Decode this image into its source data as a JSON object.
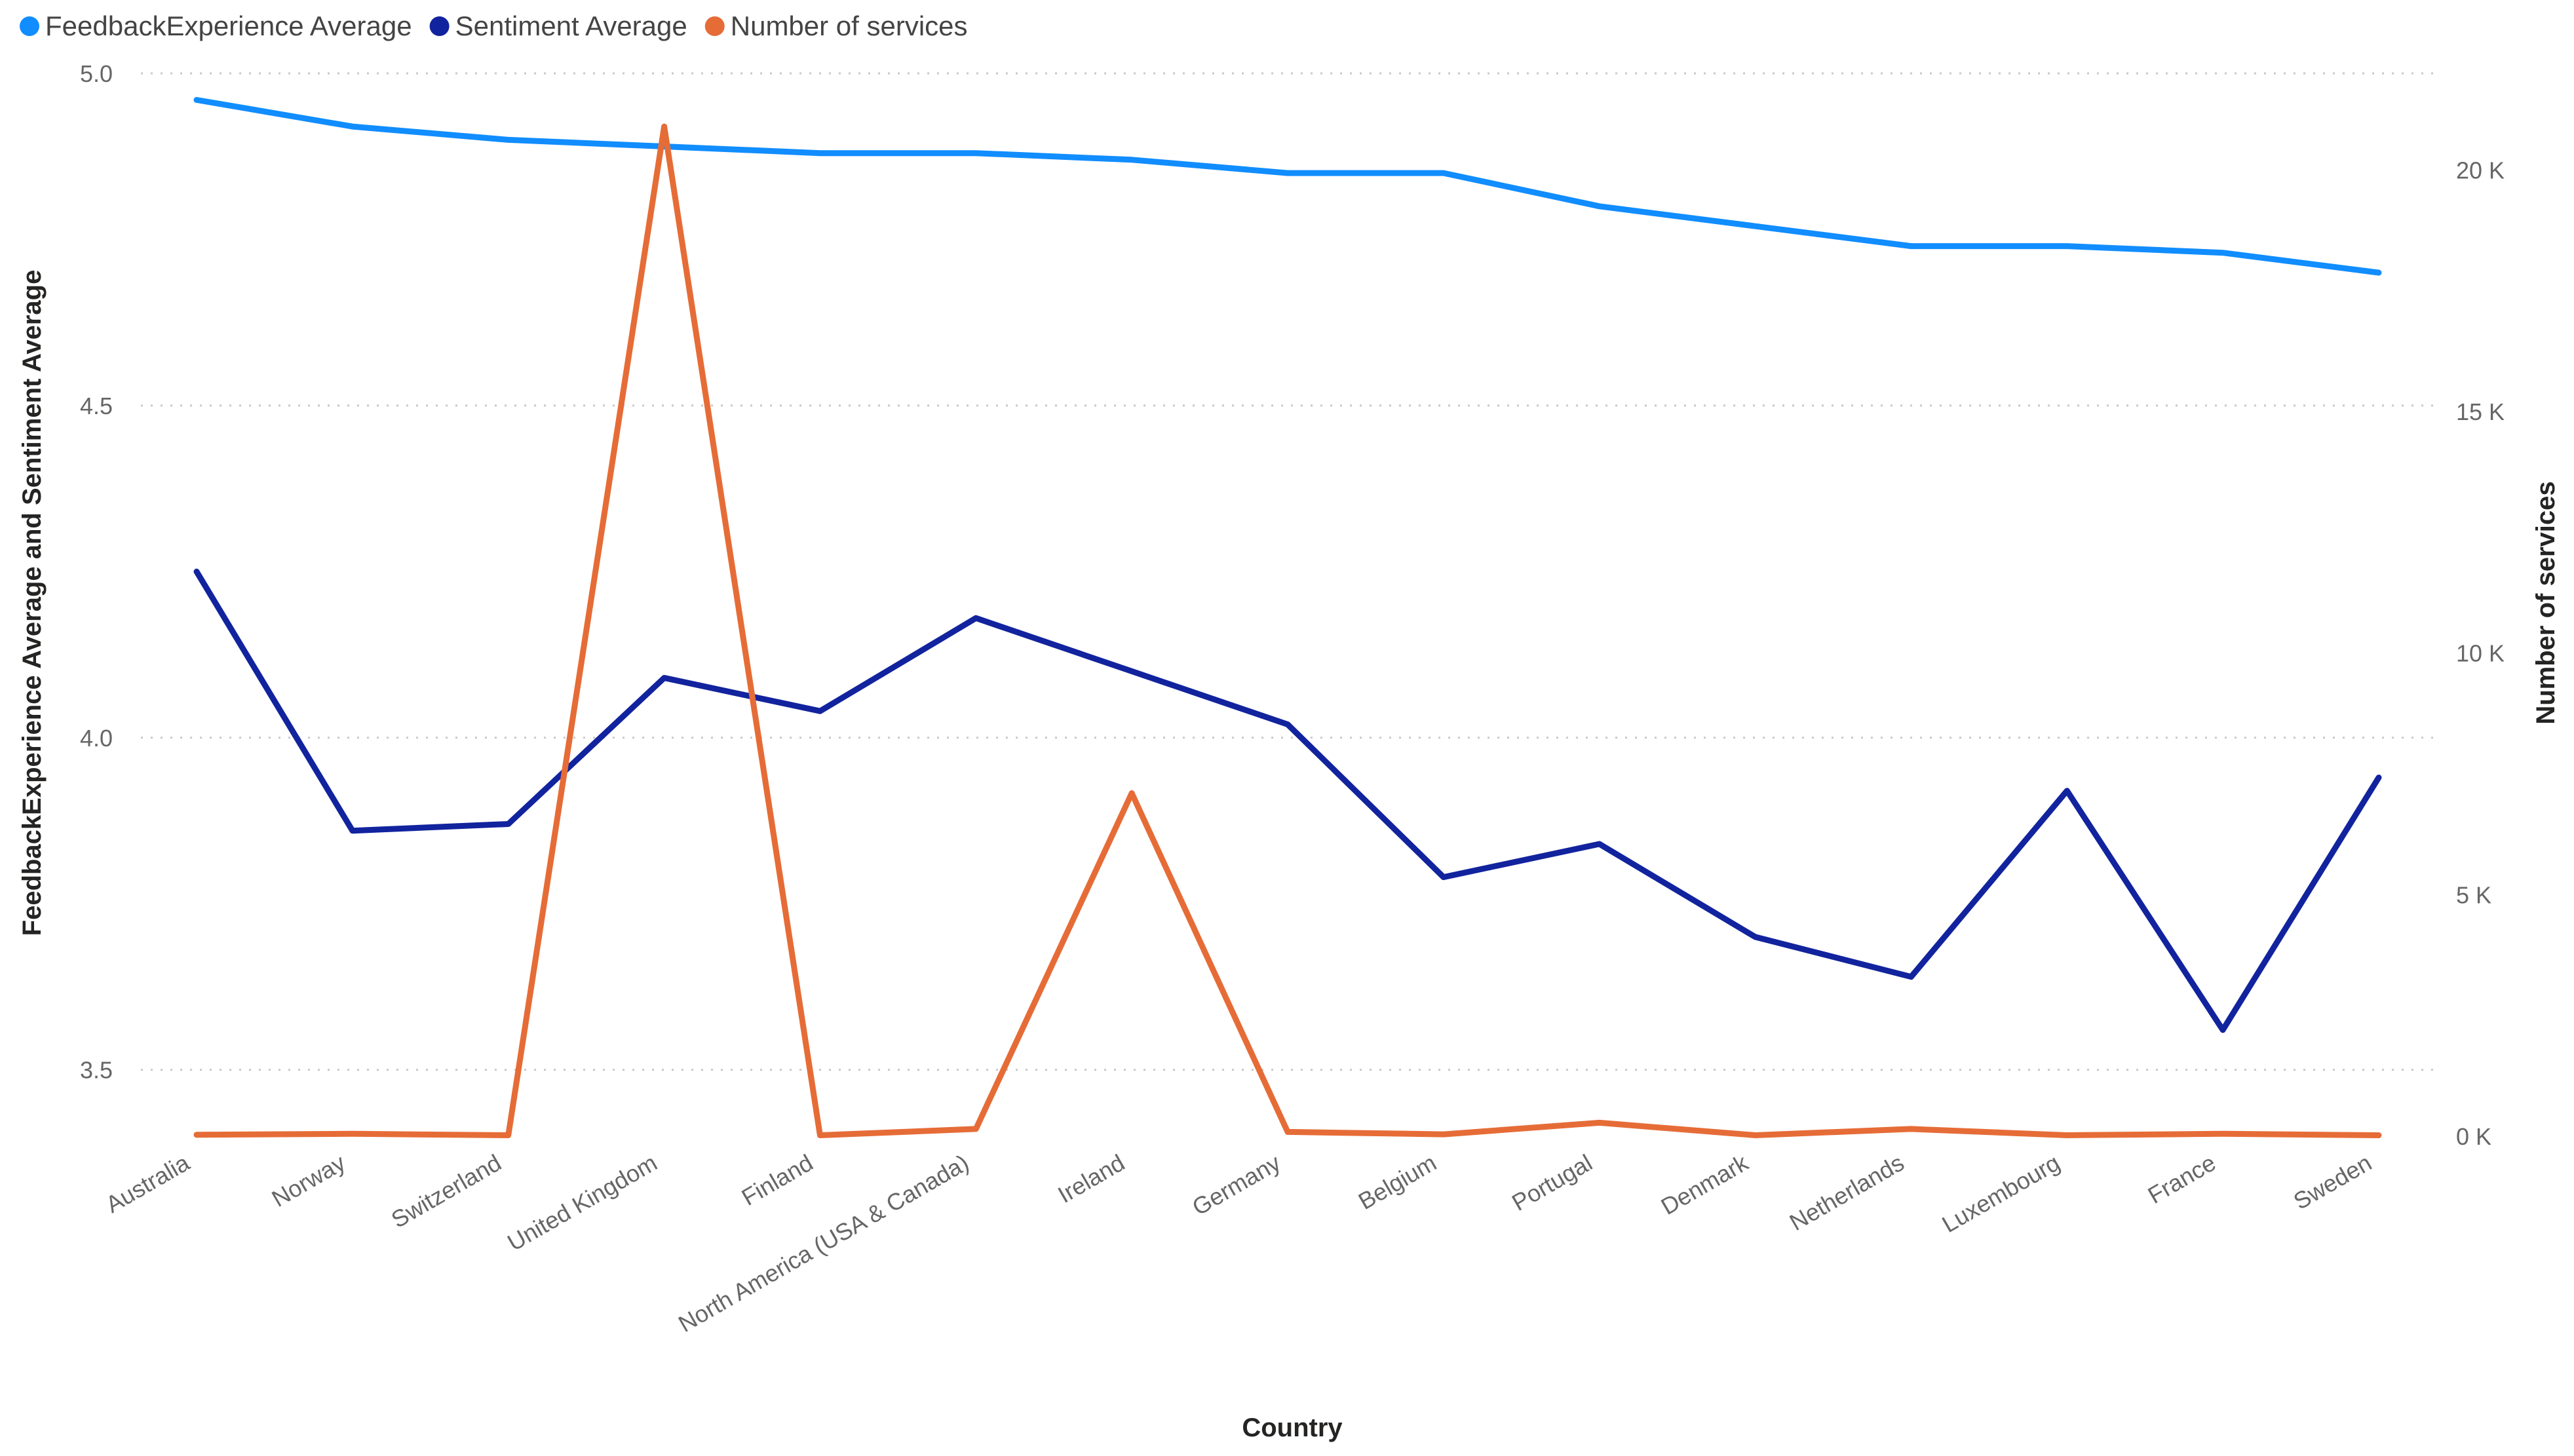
{
  "colors": {
    "feedback": "#118DFF",
    "sentiment": "#12239E",
    "services": "#E66C37"
  },
  "chart_data": {
    "type": "line",
    "legend_position": "top-left",
    "grid": true,
    "categories": [
      "Australia",
      "Norway",
      "Switzerland",
      "United Kingdom",
      "Finland",
      "North America (USA & Canada)",
      "Ireland",
      "Germany",
      "Belgium",
      "Portugal",
      "Denmark",
      "Netherlands",
      "Luxembourg",
      "France",
      "Sweden"
    ],
    "series": [
      {
        "name": "FeedbackExperience Average",
        "axis": "left",
        "values": [
          4.96,
          4.92,
          4.9,
          4.89,
          4.88,
          4.88,
          4.87,
          4.85,
          4.85,
          4.8,
          4.77,
          4.74,
          4.74,
          4.73,
          4.7
        ]
      },
      {
        "name": "Sentiment Average",
        "axis": "left",
        "values": [
          4.25,
          3.86,
          3.87,
          4.09,
          4.04,
          4.18,
          4.1,
          4.02,
          3.79,
          3.84,
          3.7,
          3.64,
          3.92,
          3.56,
          3.94
        ]
      },
      {
        "name": "Number of services",
        "axis": "right",
        "values": [
          30,
          50,
          20,
          20900,
          20,
          150,
          7100,
          90,
          40,
          280,
          20,
          150,
          20,
          50,
          20
        ]
      }
    ],
    "xlabel": "Country",
    "ylabel": "FeedbackExperience Average and Sentiment Average",
    "y2label": "Number of services",
    "ylim": [
      3.4,
      5.0
    ],
    "y2lim": [
      0,
      22000
    ],
    "yticks": [
      3.5,
      4.0,
      4.5,
      5.0
    ],
    "yticklabels": [
      "3.5",
      "4.0",
      "4.5",
      "5.0"
    ],
    "y2ticks": [
      0,
      5000,
      10000,
      15000,
      20000
    ],
    "y2ticklabels": [
      "0 K",
      "5 K",
      "10 K",
      "15 K",
      "20 K"
    ]
  }
}
